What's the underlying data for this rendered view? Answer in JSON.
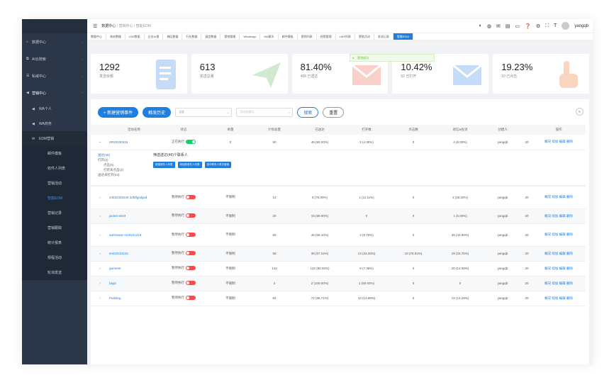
{
  "sidebar": {
    "items": [
      {
        "icon": "home-icon",
        "label": "数据中心"
      },
      {
        "icon": "ai-icon",
        "label": "AI云搜索"
      },
      {
        "icon": "domain-icon",
        "label": "私域中心"
      },
      {
        "icon": "send-icon",
        "label": "营销中心"
      }
    ],
    "sub": [
      {
        "label": "WA个人"
      },
      {
        "label": "WA商务"
      },
      {
        "label": "EDM营销"
      }
    ],
    "subsub": [
      "邮件模板",
      "收件人列表",
      "营销活动",
      "智能EDM",
      "营销记录",
      "营销跟踪",
      "统计报表",
      "规程活动",
      "轮询发送"
    ]
  },
  "topbar": {
    "breadcrumb": [
      "数据中心",
      "营销中心",
      "智能EDM"
    ],
    "user": "yangqb"
  },
  "tabs": [
    "数据中心",
    "海关数据",
    "LBS数据",
    "企业AI搜",
    "城区数据",
    "行业数据",
    "展会数据",
    "营销搜搜",
    "Whatsapp",
    "WA聊天",
    "邮件模板",
    "营销列表",
    "经营管理",
    "LMS列表",
    "营销活动",
    "发送记录",
    "智能EDM"
  ],
  "stats": [
    {
      "value": "1292",
      "label": "发送余额"
    },
    {
      "value": "613",
      "label": "发送总量"
    },
    {
      "value": "81.40%",
      "label": "499 已送达"
    },
    {
      "value": "10.42%",
      "label": "52 已打开"
    },
    {
      "value": "19.23%",
      "label": "10 已点击"
    }
  ],
  "toast": "更改成功",
  "toolbar": {
    "new_label": "+ 新建营销事件",
    "trigger_label": "触发历史",
    "select_value": "全部",
    "search_placeholder": "活动关键词",
    "search_label": "搜索",
    "reset_label": "重置"
  },
  "columns": [
    "活动名称",
    "状态",
    "余量",
    "计划总量",
    "已送达",
    "打开数",
    "点击数",
    "退信&投诉",
    "创建人",
    "",
    "操作"
  ],
  "rows": [
    {
      "name": "SR20230315",
      "status": "正在执行",
      "toggle": "on",
      "quota": "0",
      "plan": "50",
      "delivered": "46 (92.00%)",
      "opened": "2 (4.35%)",
      "clicked": "0",
      "bounce": "4 (8.00%)",
      "creator": "yangqb",
      "extra": "20",
      "ops": "概况 续加 编辑 删除"
    },
    {
      "name": "24632346345 3dfdfgsdgsd",
      "status": "暂停执行",
      "toggle": "off",
      "quota": "不限制",
      "plan": "12",
      "delivered": "9 (75.00%)",
      "opened": "1 (11.11%)",
      "clicked": "0",
      "bounce": "3 (25.00%)",
      "creator": "yangqb",
      "extra": "20",
      "ops": "概况 续加 编辑 删除"
    },
    {
      "name": "jacket-2023",
      "status": "暂停执行",
      "toggle": "off",
      "quota": "不限制",
      "plan": "20",
      "delivered": "19 (95.00%)",
      "opened": "0",
      "clicked": "0",
      "bounce": "1 (5.00%)",
      "creator": "yangqb",
      "extra": "20",
      "ops": "概况 续加 编辑 删除"
    },
    {
      "name": "swimwear-m20221219",
      "status": "暂停执行",
      "toggle": "off",
      "quota": "不限制",
      "plan": "82",
      "delivered": "46 (56.10%)",
      "opened": "4 (8.70%)",
      "clicked": "0",
      "bounce": "36 (43.90%)",
      "creator": "yangqb",
      "extra": "20",
      "ops": "概况 续加 编辑 删除"
    },
    {
      "name": "test20221116",
      "status": "暂停执行",
      "toggle": "off",
      "quota": "不限制",
      "plan": "58",
      "delivered": "39 (67.24%)",
      "opened": "13 (33.33%)",
      "clicked": "10 (76.92%)",
      "bounce": "19 (32.76%)",
      "creator": "yangqb",
      "extra": "20",
      "ops": "概况 续加 编辑 删除"
    },
    {
      "name": "garment",
      "status": "暂停执行",
      "toggle": "off",
      "quota": "不限制",
      "plan": "142",
      "delivered": "122 (85.92%)",
      "opened": "9 (7.38%)",
      "clicked": "0",
      "bounce": "20 (14.08%)",
      "creator": "yangqb",
      "extra": "20",
      "ops": "概况 续加 编辑 删除"
    },
    {
      "name": "bags",
      "status": "暂停执行",
      "toggle": "off",
      "quota": "不限制",
      "plan": "2",
      "delivered": "2 (100.00%)",
      "opened": "1 (50.00%)",
      "clicked": "0",
      "bounce": "0",
      "creator": "yangqb",
      "extra": "20",
      "ops": "概况 续加 编辑 删除"
    },
    {
      "name": "Pudding",
      "status": "暂停执行",
      "toggle": "off",
      "quota": "不限制",
      "plan": "84",
      "delivered": "72 (85.71%)",
      "opened": "10 (13.89%)",
      "clicked": "0",
      "bounce": "12 (14.29%)",
      "creator": "yangqb",
      "extra": "20",
      "ops": "概况 续加 编辑 删除"
    }
  ],
  "expand": {
    "filters": [
      "送达(46)",
      "打开(2)",
      "点击(0)",
      "打开未点击(2)",
      "送达未打开(44)"
    ],
    "title": "筛选送达(46)个联系人",
    "buttons": [
      "新建收件人列表",
      "添加到收件人列表",
      "选中联系人再次营销"
    ]
  },
  "colors": {
    "primary": "#1e7fe0",
    "sidebar": "#2b3648",
    "success": "#13ce66",
    "danger": "#ff4949"
  }
}
